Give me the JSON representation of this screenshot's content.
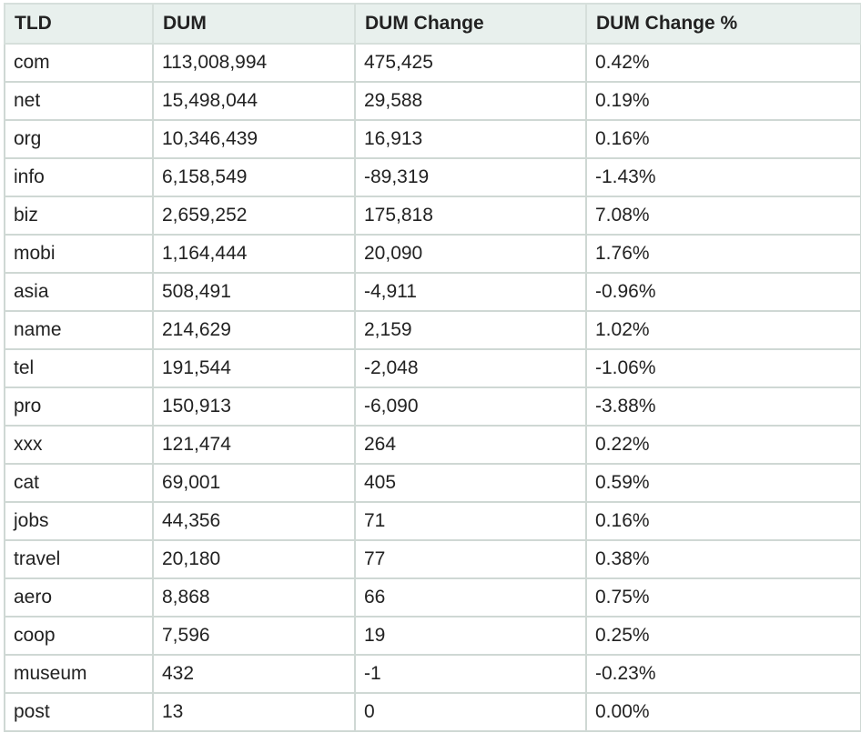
{
  "table": {
    "headers": [
      "TLD",
      "DUM",
      "DUM Change",
      "DUM Change %"
    ],
    "rows": [
      [
        "com",
        "113,008,994",
        "475,425",
        "0.42%"
      ],
      [
        "net",
        "15,498,044",
        "29,588",
        "0.19%"
      ],
      [
        "org",
        "10,346,439",
        "16,913",
        "0.16%"
      ],
      [
        "info",
        "6,158,549",
        "-89,319",
        "-1.43%"
      ],
      [
        "biz",
        "2,659,252",
        "175,818",
        "7.08%"
      ],
      [
        "mobi",
        "1,164,444",
        "20,090",
        "1.76%"
      ],
      [
        "asia",
        "508,491",
        "-4,911",
        "-0.96%"
      ],
      [
        "name",
        "214,629",
        "2,159",
        "1.02%"
      ],
      [
        "tel",
        "191,544",
        "-2,048",
        "-1.06%"
      ],
      [
        "pro",
        "150,913",
        "-6,090",
        "-3.88%"
      ],
      [
        "xxx",
        "121,474",
        "264",
        "0.22%"
      ],
      [
        "cat",
        "69,001",
        "405",
        "0.59%"
      ],
      [
        "jobs",
        "44,356",
        "71",
        "0.16%"
      ],
      [
        "travel",
        "20,180",
        "77",
        "0.38%"
      ],
      [
        "aero",
        "8,868",
        "66",
        "0.75%"
      ],
      [
        "coop",
        "7,596",
        "19",
        "0.25%"
      ],
      [
        "museum",
        "432",
        "-1",
        "-0.23%"
      ],
      [
        "post",
        "13",
        "0",
        "0.00%"
      ]
    ]
  }
}
